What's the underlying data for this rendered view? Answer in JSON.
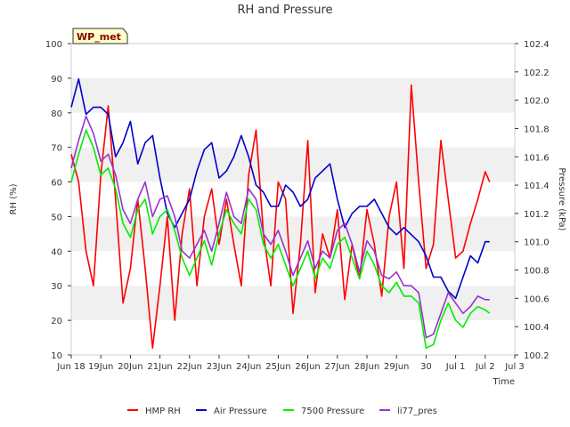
{
  "chart_data": {
    "type": "line",
    "title": "RH and Pressure",
    "badge": "WP_met",
    "xlabel": "Time",
    "ylabel_left": "RH (%)",
    "ylabel_right": "Pressure (kPa)",
    "x_ticks": [
      "Jun 18",
      "Jun 19",
      "Jun 20",
      "Jun 21",
      "Jun 22",
      "Jun 23",
      "Jun 24",
      "Jun 25",
      "Jun 26",
      "Jun 27",
      "Jun 28",
      "Jun 29",
      "Jun 30",
      "Jul 1",
      "Jul 2",
      "Jul 3"
    ],
    "x_tick_labels": [
      "Jun 18",
      "19Jun",
      "20Jun",
      "21Jun",
      "22Jun",
      "23Jun",
      "24Jun",
      "25Jun",
      "26Jun",
      "27Jun",
      "28Jun",
      "29Jun",
      "30",
      "Jul 1",
      "Jul 2",
      "Jul 3"
    ],
    "xlim": [
      0,
      15
    ],
    "ylim_left": [
      10,
      100
    ],
    "ylim_right": [
      100.2,
      102.4
    ],
    "y_ticks_left": [
      "10",
      "20",
      "30",
      "40",
      "50",
      "60",
      "70",
      "80",
      "90",
      "100"
    ],
    "y_ticks_right": [
      "100.2",
      "100.4",
      "100.6",
      "100.8",
      "101.0",
      "101.2",
      "101.4",
      "101.6",
      "101.8",
      "102.0",
      "102.2",
      "102.4"
    ],
    "grid": "horizontal bands",
    "legend_position": "bottom",
    "series": [
      {
        "name": "HMP RH",
        "axis": "left",
        "color": "#ff0000",
        "x": [
          0,
          0.25,
          0.5,
          0.75,
          1,
          1.25,
          1.5,
          1.75,
          2,
          2.25,
          2.5,
          2.75,
          3,
          3.25,
          3.5,
          3.75,
          4,
          4.25,
          4.5,
          4.75,
          5,
          5.25,
          5.5,
          5.75,
          6,
          6.25,
          6.5,
          6.75,
          7,
          7.25,
          7.5,
          7.75,
          8,
          8.25,
          8.5,
          8.75,
          9,
          9.25,
          9.5,
          9.75,
          10,
          10.25,
          10.5,
          10.75,
          11,
          11.25,
          11.5,
          11.75,
          12,
          12.25,
          12.5,
          12.75,
          13,
          13.25,
          13.5,
          13.75,
          14,
          14.15
        ],
        "values": [
          68,
          60,
          40,
          30,
          62,
          82,
          55,
          25,
          35,
          55,
          35,
          12,
          30,
          50,
          20,
          45,
          58,
          30,
          50,
          58,
          42,
          55,
          42,
          30,
          62,
          75,
          45,
          30,
          60,
          55,
          22,
          42,
          72,
          28,
          45,
          38,
          52,
          26,
          42,
          32,
          52,
          42,
          27,
          50,
          60,
          35,
          88,
          60,
          35,
          42,
          72,
          55,
          38,
          40,
          48,
          55,
          63,
          60
        ]
      },
      {
        "name": "Air Pressure",
        "axis": "right",
        "color": "#0000cc",
        "x": [
          0,
          0.25,
          0.5,
          0.75,
          1,
          1.25,
          1.5,
          1.75,
          2,
          2.25,
          2.5,
          2.75,
          3,
          3.25,
          3.5,
          3.75,
          4,
          4.25,
          4.5,
          4.75,
          5,
          5.25,
          5.5,
          5.75,
          6,
          6.25,
          6.5,
          6.75,
          7,
          7.25,
          7.5,
          7.75,
          8,
          8.25,
          8.5,
          8.75,
          9,
          9.25,
          9.5,
          9.75,
          10,
          10.25,
          10.5,
          10.75,
          11,
          11.25,
          11.5,
          11.75,
          12,
          12.25,
          12.5,
          12.75,
          13,
          13.25,
          13.5,
          13.75,
          14,
          14.15
        ],
        "values": [
          101.95,
          102.15,
          101.9,
          101.95,
          101.95,
          101.9,
          101.6,
          101.7,
          101.85,
          101.55,
          101.7,
          101.75,
          101.45,
          101.2,
          101.1,
          101.2,
          101.3,
          101.5,
          101.65,
          101.7,
          101.45,
          101.5,
          101.6,
          101.75,
          101.6,
          101.4,
          101.35,
          101.25,
          101.25,
          101.4,
          101.35,
          101.25,
          101.3,
          101.45,
          101.5,
          101.55,
          101.3,
          101.1,
          101.2,
          101.25,
          101.25,
          101.3,
          101.2,
          101.1,
          101.05,
          101.1,
          101.05,
          101.0,
          100.9,
          100.75,
          100.75,
          100.65,
          100.6,
          100.75,
          100.9,
          100.85,
          101.0,
          101.0
        ]
      },
      {
        "name": "7500 Pressure",
        "axis": "left",
        "color": "#00ee00",
        "x": [
          0,
          0.25,
          0.5,
          0.75,
          1,
          1.25,
          1.5,
          1.75,
          2,
          2.25,
          2.5,
          2.75,
          3,
          3.25,
          3.5,
          3.75,
          4,
          4.25,
          4.5,
          4.75,
          5,
          5.25,
          5.5,
          5.75,
          6,
          6.25,
          6.5,
          6.75,
          7,
          7.25,
          7.5,
          7.75,
          8,
          8.25,
          8.5,
          8.75,
          9,
          9.25,
          9.5,
          9.75,
          10,
          10.25,
          10.5,
          10.75,
          11,
          11.25,
          11.5,
          11.75,
          12,
          12.25,
          12.5,
          12.75,
          13,
          13.25,
          13.5,
          13.75,
          14,
          14.15
        ],
        "values": [
          60,
          68,
          75,
          70,
          62,
          64,
          58,
          48,
          44,
          52,
          55,
          45,
          50,
          52,
          46,
          38,
          33,
          38,
          43,
          36,
          45,
          52,
          48,
          45,
          55,
          52,
          42,
          38,
          42,
          36,
          30,
          35,
          40,
          32,
          38,
          35,
          42,
          44,
          38,
          32,
          40,
          36,
          30,
          28,
          31,
          27,
          27,
          25,
          12,
          13,
          20,
          25,
          20,
          18,
          22,
          24,
          23,
          22
        ]
      },
      {
        "name": "li77_pres",
        "axis": "left",
        "color": "#9933cc",
        "x": [
          0,
          0.25,
          0.5,
          0.75,
          1,
          1.25,
          1.5,
          1.75,
          2,
          2.25,
          2.5,
          2.75,
          3,
          3.25,
          3.5,
          3.75,
          4,
          4.25,
          4.5,
          4.75,
          5,
          5.25,
          5.5,
          5.75,
          6,
          6.25,
          6.5,
          6.75,
          7,
          7.25,
          7.5,
          7.75,
          8,
          8.25,
          8.5,
          8.75,
          9,
          9.25,
          9.5,
          9.75,
          10,
          10.25,
          10.5,
          10.75,
          11,
          11.25,
          11.5,
          11.75,
          12,
          12.25,
          12.5,
          12.75,
          13,
          13.25,
          13.5,
          13.75,
          14,
          14.15
        ],
        "values": [
          64,
          72,
          79,
          74,
          66,
          68,
          62,
          52,
          48,
          55,
          60,
          50,
          55,
          56,
          50,
          40,
          38,
          42,
          46,
          40,
          48,
          57,
          50,
          48,
          58,
          55,
          45,
          42,
          46,
          40,
          33,
          38,
          43,
          35,
          40,
          38,
          46,
          48,
          42,
          34,
          43,
          40,
          33,
          32,
          34,
          30,
          30,
          28,
          15,
          16,
          22,
          28,
          25,
          22,
          24,
          27,
          26,
          26
        ]
      }
    ]
  }
}
